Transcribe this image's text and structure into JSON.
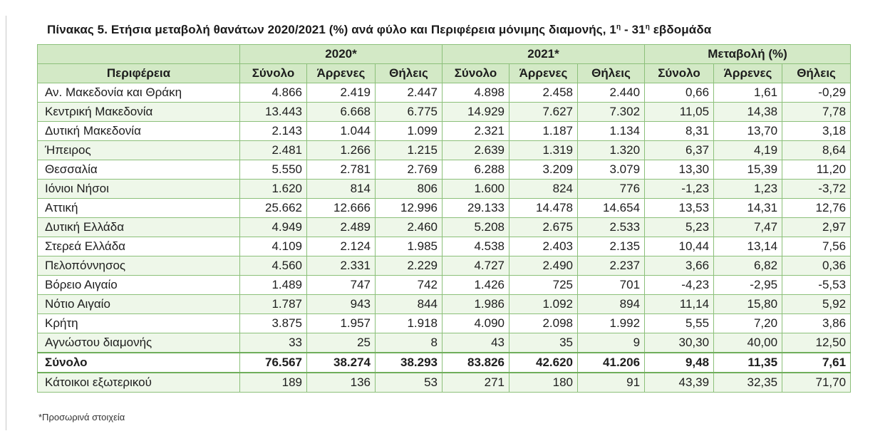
{
  "caption": {
    "text": "Πίνακας 5. Ετήσια μεταβολή θανάτων 2020/2021 (%) ανά φύλο και Περιφέρεια μόνιμης διαμονής, 1",
    "sup1": "η",
    "mid": " - 31",
    "sup2": "η",
    "end": " εβδομάδα"
  },
  "table": {
    "group_headers": [
      "2020*",
      "2021*",
      "Μεταβολή (%)"
    ],
    "region_header": "Περιφέρεια",
    "sub_headers": [
      "Σύνολο",
      "Άρρενες",
      "Θήλεις",
      "Σύνολο",
      "Άρρενες",
      "Θήλεις",
      "Σύνολο",
      "Άρρενες",
      "Θήλεις"
    ],
    "rows": [
      {
        "region": "Αν. Μακεδονία και Θράκη",
        "values": [
          "4.866",
          "2.419",
          "2.447",
          "4.898",
          "2.458",
          "2.440",
          "0,66",
          "1,61",
          "-0,29"
        ]
      },
      {
        "region": "Κεντρική Μακεδονία",
        "values": [
          "13.443",
          "6.668",
          "6.775",
          "14.929",
          "7.627",
          "7.302",
          "11,05",
          "14,38",
          "7,78"
        ]
      },
      {
        "region": "Δυτική Μακεδονία",
        "values": [
          "2.143",
          "1.044",
          "1.099",
          "2.321",
          "1.187",
          "1.134",
          "8,31",
          "13,70",
          "3,18"
        ]
      },
      {
        "region": "Ήπειρος",
        "values": [
          "2.481",
          "1.266",
          "1.215",
          "2.639",
          "1.319",
          "1.320",
          "6,37",
          "4,19",
          "8,64"
        ]
      },
      {
        "region": "Θεσσαλία",
        "values": [
          "5.550",
          "2.781",
          "2.769",
          "6.288",
          "3.209",
          "3.079",
          "13,30",
          "15,39",
          "11,20"
        ]
      },
      {
        "region": "Ιόνιοι Νήσοι",
        "values": [
          "1.620",
          "814",
          "806",
          "1.600",
          "824",
          "776",
          "-1,23",
          "1,23",
          "-3,72"
        ]
      },
      {
        "region": "Αττική",
        "values": [
          "25.662",
          "12.666",
          "12.996",
          "29.133",
          "14.478",
          "14.654",
          "13,53",
          "14,31",
          "12,76"
        ]
      },
      {
        "region": "Δυτική Ελλάδα",
        "values": [
          "4.949",
          "2.489",
          "2.460",
          "5.208",
          "2.675",
          "2.533",
          "5,23",
          "7,47",
          "2,97"
        ]
      },
      {
        "region": "Στερεά Ελλάδα",
        "values": [
          "4.109",
          "2.124",
          "1.985",
          "4.538",
          "2.403",
          "2.135",
          "10,44",
          "13,14",
          "7,56"
        ]
      },
      {
        "region": "Πελοπόννησος",
        "values": [
          "4.560",
          "2.331",
          "2.229",
          "4.727",
          "2.490",
          "2.237",
          "3,66",
          "6,82",
          "0,36"
        ]
      },
      {
        "region": "Βόρειο Αιγαίο",
        "values": [
          "1.489",
          "747",
          "742",
          "1.426",
          "725",
          "701",
          "-4,23",
          "-2,95",
          "-5,53"
        ]
      },
      {
        "region": "Νότιο Αιγαίο",
        "values": [
          "1.787",
          "943",
          "844",
          "1.986",
          "1.092",
          "894",
          "11,14",
          "15,80",
          "5,92"
        ]
      },
      {
        "region": "Κρήτη",
        "values": [
          "3.875",
          "1.957",
          "1.918",
          "4.090",
          "2.098",
          "1.992",
          "5,55",
          "7,20",
          "3,86"
        ]
      },
      {
        "region": "Αγνώστου διαμονής",
        "values": [
          "33",
          "25",
          "8",
          "43",
          "35",
          "9",
          "30,30",
          "40,00",
          "12,50"
        ]
      }
    ],
    "total_row": {
      "region": "Σύνολο",
      "values": [
        "76.567",
        "38.274",
        "38.293",
        "83.826",
        "42.620",
        "41.206",
        "9,48",
        "11,35",
        "7,61"
      ]
    },
    "abroad_row": {
      "region": "Κάτοικοι εξωτερικού",
      "values": [
        "189",
        "136",
        "53",
        "271",
        "180",
        "91",
        "43,39",
        "32,35",
        "71,70"
      ]
    }
  },
  "footnote": "*Προσωρινά στοιχεία",
  "colors": {
    "header_fill": "#d3e9c6",
    "border": "#8cc07a",
    "stripe": "#eef7e9"
  }
}
